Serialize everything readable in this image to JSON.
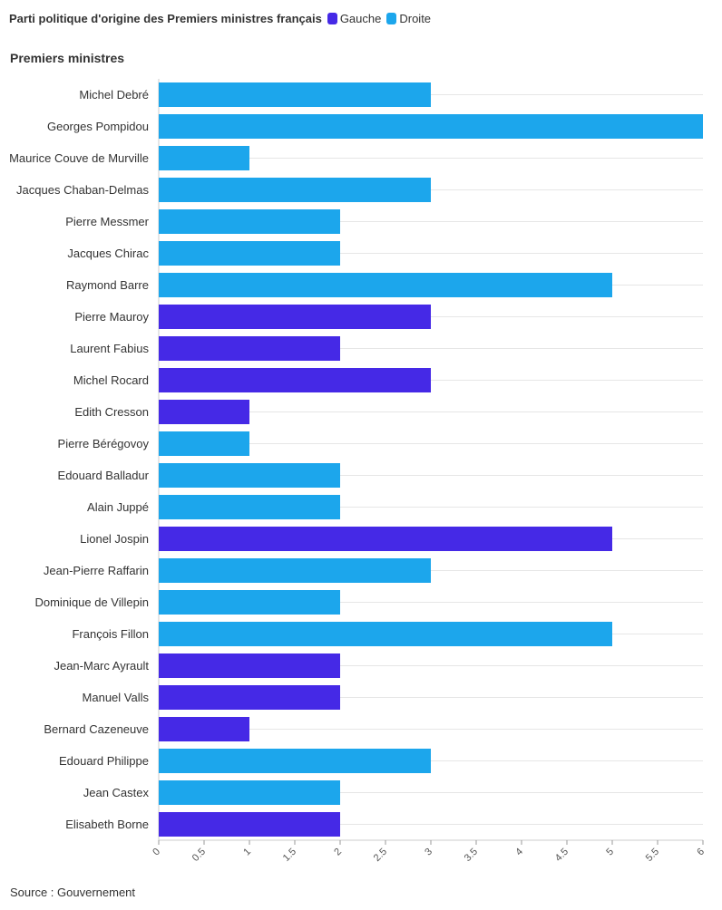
{
  "legend": {
    "title": "Parti politique d'origine des Premiers ministres français",
    "items": [
      {
        "label": "Gauche",
        "color": "#4529e6"
      },
      {
        "label": "Droite",
        "color": "#1ca6ec"
      }
    ]
  },
  "section_title": "Premiers ministres",
  "source": "Source : Gouvernement",
  "chart_data": {
    "type": "bar",
    "orientation": "horizontal",
    "categories": [
      "Michel Debré",
      "Georges Pompidou",
      "Maurice Couve de Murville",
      "Jacques Chaban-Delmas",
      "Pierre Messmer",
      "Jacques Chirac",
      "Raymond Barre",
      "Pierre Mauroy",
      "Laurent Fabius",
      "Michel Rocard",
      "Edith Cresson",
      "Pierre Bérégovoy",
      "Edouard Balladur",
      "Alain Juppé",
      "Lionel Jospin",
      "Jean-Pierre Raffarin",
      "Dominique de Villepin",
      "François Fillon",
      "Jean-Marc Ayrault",
      "Manuel Valls",
      "Bernard Cazeneuve",
      "Edouard Philippe",
      "Jean Castex",
      "Elisabeth Borne"
    ],
    "values": [
      3,
      6,
      1,
      3,
      2,
      2,
      5,
      3,
      2,
      3,
      1,
      1,
      2,
      2,
      5,
      3,
      2,
      5,
      2,
      2,
      1,
      3,
      2,
      2
    ],
    "party": [
      "Droite",
      "Droite",
      "Droite",
      "Droite",
      "Droite",
      "Droite",
      "Droite",
      "Gauche",
      "Gauche",
      "Gauche",
      "Gauche",
      "Droite",
      "Droite",
      "Droite",
      "Gauche",
      "Droite",
      "Droite",
      "Droite",
      "Gauche",
      "Gauche",
      "Gauche",
      "Droite",
      "Droite",
      "Gauche"
    ],
    "xlim": [
      0,
      6
    ],
    "ticks": [
      "0",
      "0.5",
      "1",
      "1.5",
      "2",
      "2.5",
      "3",
      "3.5",
      "4",
      "4.5",
      "5",
      "5.5",
      "6"
    ],
    "grid": true
  }
}
